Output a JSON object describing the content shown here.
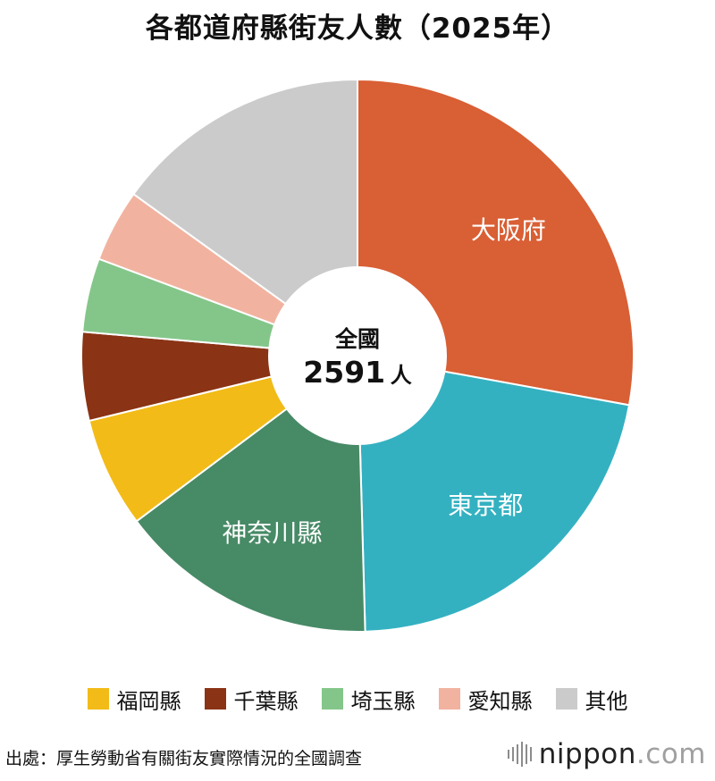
{
  "chart_data": {
    "type": "pie",
    "title": "各都道府縣街友人數（2025年）",
    "center_label": {
      "line1": "全國",
      "value": "2591",
      "unit": "人"
    },
    "slices": [
      {
        "label": "大阪府",
        "value": 722,
        "color": "#d95f34",
        "show_label": true
      },
      {
        "label": "東京都",
        "value": 562,
        "color": "#34b1c1",
        "show_label": true
      },
      {
        "label": "神奈川縣",
        "value": 394,
        "color": "#478a66",
        "show_label": true
      },
      {
        "label": "福岡縣",
        "value": 167,
        "color": "#f2bb18",
        "show_label": false
      },
      {
        "label": "千葉縣",
        "value": 134,
        "color": "#8a3315",
        "show_label": false
      },
      {
        "label": "埼玉縣",
        "value": 112,
        "color": "#84c68a",
        "show_label": false
      },
      {
        "label": "愛知縣",
        "value": 110,
        "color": "#f1b3a0",
        "show_label": false
      },
      {
        "label": "其他",
        "value": 390,
        "color": "#cbcbcb",
        "show_label": false
      }
    ],
    "legend": [
      "福岡縣",
      "千葉縣",
      "埼玉縣",
      "愛知縣",
      "其他"
    ]
  },
  "source": "出處：厚生勞動省有關街友實際情況的全國調查",
  "brand": {
    "name": "nippon",
    "dot": ".",
    "domain": "com"
  }
}
